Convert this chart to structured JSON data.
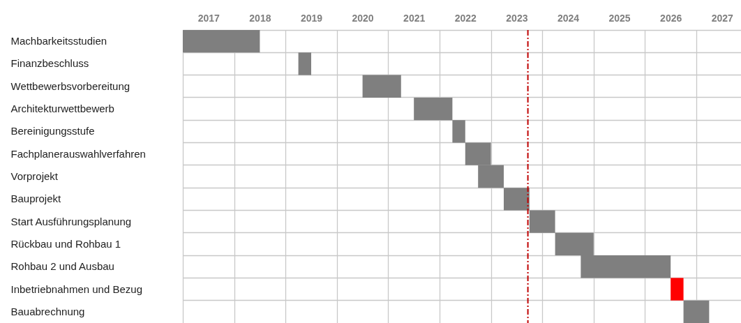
{
  "chart_data": {
    "type": "bar",
    "orientation": "horizontal",
    "grid": true,
    "categories": [
      "Machbarkeitsstudien",
      "Finanzbeschluss",
      "Wettbewerbsvorbereitung",
      "Architekturwettbewerb",
      "Bereinigungsstufe",
      "Fachplanerauswahlverfahren",
      "Vorprojekt",
      "Bauprojekt",
      "Start Ausführungsplanung",
      "Rückbau und Rohbau 1",
      "Rohbau 2 und Ausbau",
      "Inbetriebnahmen und Bezug",
      "Bauabrechnung"
    ],
    "base": [
      2017,
      2019.25,
      2020.5,
      2021.5,
      2022.25,
      2022.5,
      2022.75,
      2023.25,
      2023.75,
      2024.25,
      2024.75,
      2026.5,
      2026.75
    ],
    "values": [
      1.5,
      0.25,
      0.75,
      0.75,
      0.25,
      0.5,
      0.5,
      0.5,
      0.5,
      0.75,
      1.75,
      0.25,
      0.5
    ],
    "colors": [
      "#7f7f7f",
      "#7f7f7f",
      "#7f7f7f",
      "#7f7f7f",
      "#7f7f7f",
      "#7f7f7f",
      "#7f7f7f",
      "#7f7f7f",
      "#7f7f7f",
      "#7f7f7f",
      "#7f7f7f",
      "#ff0000",
      "#7f7f7f"
    ],
    "xlim": [
      2017,
      2027.87
    ],
    "xticks": [
      {
        "value": 2017.5,
        "label": "2017"
      },
      {
        "value": 2018.5,
        "label": "2018"
      },
      {
        "value": 2019.5,
        "label": "2019"
      },
      {
        "value": 2020.5,
        "label": "2020"
      },
      {
        "value": 2021.5,
        "label": "2021"
      },
      {
        "value": 2022.5,
        "label": "2022"
      },
      {
        "value": 2023.5,
        "label": "2023"
      },
      {
        "value": 2024.5,
        "label": "2024"
      },
      {
        "value": 2025.5,
        "label": "2025"
      },
      {
        "value": 2026.5,
        "label": "2026"
      },
      {
        "value": 2027.5,
        "label": "2027"
      }
    ],
    "ref_lines": [
      {
        "axis": "x",
        "value": 2023.72,
        "color": "#c00000",
        "line_style": "dashed"
      }
    ]
  }
}
